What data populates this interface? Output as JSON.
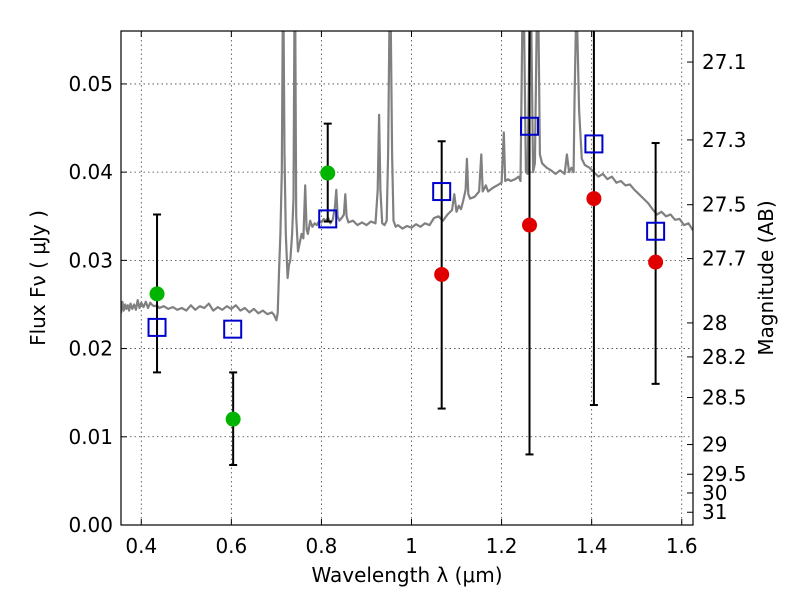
{
  "chart_data": {
    "type": "scatter",
    "xlabel": "Wavelength  λ (μm)",
    "ylabel": "Flux  Fν  ( μJy )",
    "ylabel_right": "Magnitude (AB)",
    "xlim": [
      0.355,
      1.625
    ],
    "ylim": [
      0.0,
      0.056
    ],
    "grid": true,
    "x_ticks": [
      {
        "value": 0.4,
        "label": "0.4"
      },
      {
        "value": 0.6,
        "label": "0.6"
      },
      {
        "value": 0.8,
        "label": "0.8"
      },
      {
        "value": 1.0,
        "label": "1"
      },
      {
        "value": 1.2,
        "label": "1.2"
      },
      {
        "value": 1.4,
        "label": "1.4"
      },
      {
        "value": 1.6,
        "label": "1.6"
      }
    ],
    "y_ticks": [
      {
        "value": 0.0,
        "label": "0.00"
      },
      {
        "value": 0.01,
        "label": "0.01"
      },
      {
        "value": 0.02,
        "label": "0.02"
      },
      {
        "value": 0.03,
        "label": "0.03"
      },
      {
        "value": 0.04,
        "label": "0.04"
      },
      {
        "value": 0.05,
        "label": "0.05"
      }
    ],
    "right_ticks": [
      {
        "mag": 27.1,
        "label": "27.1"
      },
      {
        "mag": 27.3,
        "label": "27.3"
      },
      {
        "mag": 27.5,
        "label": "27.5"
      },
      {
        "mag": 27.7,
        "label": "27.7"
      },
      {
        "mag": 28.0,
        "label": "28"
      },
      {
        "mag": 28.2,
        "label": "28.2"
      },
      {
        "mag": 28.5,
        "label": "28.5"
      },
      {
        "mag": 29.0,
        "label": "29"
      },
      {
        "mag": 29.5,
        "label": "29.5"
      },
      {
        "mag": 30.0,
        "label": "30"
      },
      {
        "mag": 31.0,
        "label": "31"
      }
    ],
    "colors": {
      "spectrum": "#808080",
      "model": "#0000cc",
      "green": "#00b400",
      "red": "#e00000",
      "errorbar": "#000000"
    },
    "series": [
      {
        "kind": "spectrum",
        "points": [
          [
            0.355,
            0.024
          ],
          [
            0.358,
            0.0253
          ],
          [
            0.361,
            0.0243
          ],
          [
            0.364,
            0.025
          ],
          [
            0.367,
            0.0245
          ],
          [
            0.37,
            0.0249
          ],
          [
            0.373,
            0.0243
          ],
          [
            0.376,
            0.0251
          ],
          [
            0.38,
            0.0245
          ],
          [
            0.384,
            0.025
          ],
          [
            0.388,
            0.0244
          ],
          [
            0.392,
            0.0255
          ],
          [
            0.396,
            0.0246
          ],
          [
            0.4,
            0.0252
          ],
          [
            0.405,
            0.0247
          ],
          [
            0.41,
            0.0253
          ],
          [
            0.415,
            0.0246
          ],
          [
            0.42,
            0.0252
          ],
          [
            0.425,
            0.0249
          ],
          [
            0.43,
            0.0248
          ],
          [
            0.435,
            0.0249
          ],
          [
            0.44,
            0.0246
          ],
          [
            0.45,
            0.0248
          ],
          [
            0.46,
            0.0245
          ],
          [
            0.47,
            0.0247
          ],
          [
            0.48,
            0.0244
          ],
          [
            0.49,
            0.0246
          ],
          [
            0.5,
            0.0243
          ],
          [
            0.51,
            0.0249
          ],
          [
            0.52,
            0.0244
          ],
          [
            0.53,
            0.0248
          ],
          [
            0.54,
            0.0246
          ],
          [
            0.55,
            0.0251
          ],
          [
            0.56,
            0.0243
          ],
          [
            0.57,
            0.0247
          ],
          [
            0.58,
            0.0244
          ],
          [
            0.59,
            0.0248
          ],
          [
            0.6,
            0.0245
          ],
          [
            0.61,
            0.0249
          ],
          [
            0.62,
            0.0243
          ],
          [
            0.63,
            0.0246
          ],
          [
            0.64,
            0.0241
          ],
          [
            0.65,
            0.0245
          ],
          [
            0.66,
            0.024
          ],
          [
            0.67,
            0.0243
          ],
          [
            0.68,
            0.0239
          ],
          [
            0.69,
            0.0241
          ],
          [
            0.695,
            0.0238
          ],
          [
            0.7,
            0.0232
          ],
          [
            0.703,
            0.024
          ],
          [
            0.706,
            0.029
          ],
          [
            0.709,
            0.033
          ],
          [
            0.712,
            0.04
          ],
          [
            0.714,
            0.0565
          ],
          [
            0.716,
            0.0565
          ],
          [
            0.718,
            0.042
          ],
          [
            0.721,
            0.033
          ],
          [
            0.725,
            0.028
          ],
          [
            0.728,
            0.0295
          ],
          [
            0.731,
            0.03
          ],
          [
            0.735,
            0.033
          ],
          [
            0.738,
            0.037
          ],
          [
            0.74,
            0.0565
          ],
          [
            0.742,
            0.0565
          ],
          [
            0.744,
            0.035
          ],
          [
            0.748,
            0.031
          ],
          [
            0.752,
            0.032
          ],
          [
            0.756,
            0.033
          ],
          [
            0.76,
            0.0325
          ],
          [
            0.764,
            0.0385
          ],
          [
            0.767,
            0.0335
          ],
          [
            0.77,
            0.033
          ],
          [
            0.775,
            0.0345
          ],
          [
            0.78,
            0.0338
          ],
          [
            0.785,
            0.0342
          ],
          [
            0.79,
            0.034
          ],
          [
            0.795,
            0.0345
          ],
          [
            0.8,
            0.0343
          ],
          [
            0.805,
            0.0347
          ],
          [
            0.81,
            0.0345
          ],
          [
            0.815,
            0.0348
          ],
          [
            0.82,
            0.0342
          ],
          [
            0.825,
            0.0346
          ],
          [
            0.83,
            0.036
          ],
          [
            0.833,
            0.038
          ],
          [
            0.836,
            0.035
          ],
          [
            0.84,
            0.0345
          ],
          [
            0.845,
            0.0348
          ],
          [
            0.85,
            0.0352
          ],
          [
            0.853,
            0.0375
          ],
          [
            0.856,
            0.035
          ],
          [
            0.86,
            0.0343
          ],
          [
            0.87,
            0.0345
          ],
          [
            0.88,
            0.034
          ],
          [
            0.89,
            0.0343
          ],
          [
            0.9,
            0.034
          ],
          [
            0.91,
            0.0344
          ],
          [
            0.92,
            0.0342
          ],
          [
            0.925,
            0.038
          ],
          [
            0.928,
            0.0465
          ],
          [
            0.931,
            0.038
          ],
          [
            0.935,
            0.0342
          ],
          [
            0.94,
            0.034
          ],
          [
            0.945,
            0.0345
          ],
          [
            0.948,
            0.042
          ],
          [
            0.951,
            0.0565
          ],
          [
            0.954,
            0.0565
          ],
          [
            0.957,
            0.042
          ],
          [
            0.96,
            0.0345
          ],
          [
            0.965,
            0.0338
          ],
          [
            0.97,
            0.034
          ],
          [
            0.98,
            0.0336
          ],
          [
            0.99,
            0.0339
          ],
          [
            1.0,
            0.0337
          ],
          [
            1.01,
            0.0341
          ],
          [
            1.02,
            0.0338
          ],
          [
            1.03,
            0.0342
          ],
          [
            1.04,
            0.034
          ],
          [
            1.05,
            0.0348
          ],
          [
            1.06,
            0.035
          ],
          [
            1.07,
            0.0345
          ],
          [
            1.08,
            0.0352
          ],
          [
            1.09,
            0.0357
          ],
          [
            1.095,
            0.0375
          ],
          [
            1.1,
            0.0355
          ],
          [
            1.105,
            0.0362
          ],
          [
            1.11,
            0.0358
          ],
          [
            1.115,
            0.0368
          ],
          [
            1.12,
            0.038
          ],
          [
            1.123,
            0.0415
          ],
          [
            1.126,
            0.0375
          ],
          [
            1.13,
            0.037
          ],
          [
            1.14,
            0.0372
          ],
          [
            1.15,
            0.0378
          ],
          [
            1.155,
            0.042
          ],
          [
            1.158,
            0.0378
          ],
          [
            1.165,
            0.0385
          ],
          [
            1.17,
            0.0378
          ],
          [
            1.18,
            0.0382
          ],
          [
            1.19,
            0.0385
          ],
          [
            1.2,
            0.0388
          ],
          [
            1.205,
            0.0445
          ],
          [
            1.208,
            0.039
          ],
          [
            1.215,
            0.0392
          ],
          [
            1.22,
            0.039
          ],
          [
            1.23,
            0.0392
          ],
          [
            1.238,
            0.0395
          ],
          [
            1.242,
            0.039
          ],
          [
            1.246,
            0.0565
          ],
          [
            1.25,
            0.0565
          ],
          [
            1.254,
            0.04
          ],
          [
            1.258,
            0.0398
          ],
          [
            1.262,
            0.0565
          ],
          [
            1.266,
            0.0565
          ],
          [
            1.27,
            0.04
          ],
          [
            1.274,
            0.041
          ],
          [
            1.278,
            0.0565
          ],
          [
            1.282,
            0.0565
          ],
          [
            1.285,
            0.042
          ],
          [
            1.29,
            0.041
          ],
          [
            1.3,
            0.0405
          ],
          [
            1.31,
            0.0402
          ],
          [
            1.32,
            0.0398
          ],
          [
            1.33,
            0.0402
          ],
          [
            1.34,
            0.0398
          ],
          [
            1.345,
            0.042
          ],
          [
            1.35,
            0.04
          ],
          [
            1.355,
            0.0405
          ],
          [
            1.36,
            0.04
          ],
          [
            1.362,
            0.048
          ],
          [
            1.365,
            0.0565
          ],
          [
            1.368,
            0.0565
          ],
          [
            1.372,
            0.047
          ],
          [
            1.378,
            0.0415
          ],
          [
            1.385,
            0.0408
          ],
          [
            1.395,
            0.0405
          ],
          [
            1.405,
            0.04
          ],
          [
            1.415,
            0.0395
          ],
          [
            1.425,
            0.0398
          ],
          [
            1.435,
            0.0392
          ],
          [
            1.445,
            0.0395
          ],
          [
            1.455,
            0.0388
          ],
          [
            1.465,
            0.039
          ],
          [
            1.475,
            0.0385
          ],
          [
            1.485,
            0.0386
          ],
          [
            1.495,
            0.038
          ],
          [
            1.505,
            0.0375
          ],
          [
            1.515,
            0.037
          ],
          [
            1.525,
            0.0365
          ],
          [
            1.535,
            0.0358
          ],
          [
            1.545,
            0.0352
          ],
          [
            1.555,
            0.0355
          ],
          [
            1.565,
            0.035
          ],
          [
            1.575,
            0.0352
          ],
          [
            1.585,
            0.0346
          ],
          [
            1.595,
            0.0347
          ],
          [
            1.605,
            0.034
          ],
          [
            1.615,
            0.0342
          ],
          [
            1.625,
            0.0334
          ]
        ]
      },
      {
        "kind": "model-squares",
        "points": [
          [
            0.435,
            0.0224
          ],
          [
            0.603,
            0.0222
          ],
          [
            0.814,
            0.0347
          ],
          [
            1.067,
            0.0378
          ],
          [
            1.262,
            0.0452
          ],
          [
            1.405,
            0.0432
          ],
          [
            1.542,
            0.0333
          ]
        ]
      },
      {
        "kind": "green-points",
        "points": [
          {
            "x": 0.435,
            "y": 0.0262,
            "err_lo": 0.0173,
            "err_hi": 0.0352
          },
          {
            "x": 0.604,
            "y": 0.012,
            "err_lo": 0.0068,
            "err_hi": 0.0173
          },
          {
            "x": 0.814,
            "y": 0.0399,
            "err_lo": 0.0344,
            "err_hi": 0.0455
          }
        ]
      },
      {
        "kind": "red-points",
        "points": [
          {
            "x": 1.067,
            "y": 0.0284,
            "err_lo": 0.0132,
            "err_hi": 0.0435
          },
          {
            "x": 1.262,
            "y": 0.034,
            "err_lo": 0.008,
            "err_hi": 0.0563
          },
          {
            "x": 1.405,
            "y": 0.037,
            "err_lo": 0.0136,
            "err_hi": 0.0563
          },
          {
            "x": 1.542,
            "y": 0.0298,
            "err_lo": 0.016,
            "err_hi": 0.0433
          }
        ]
      }
    ]
  }
}
